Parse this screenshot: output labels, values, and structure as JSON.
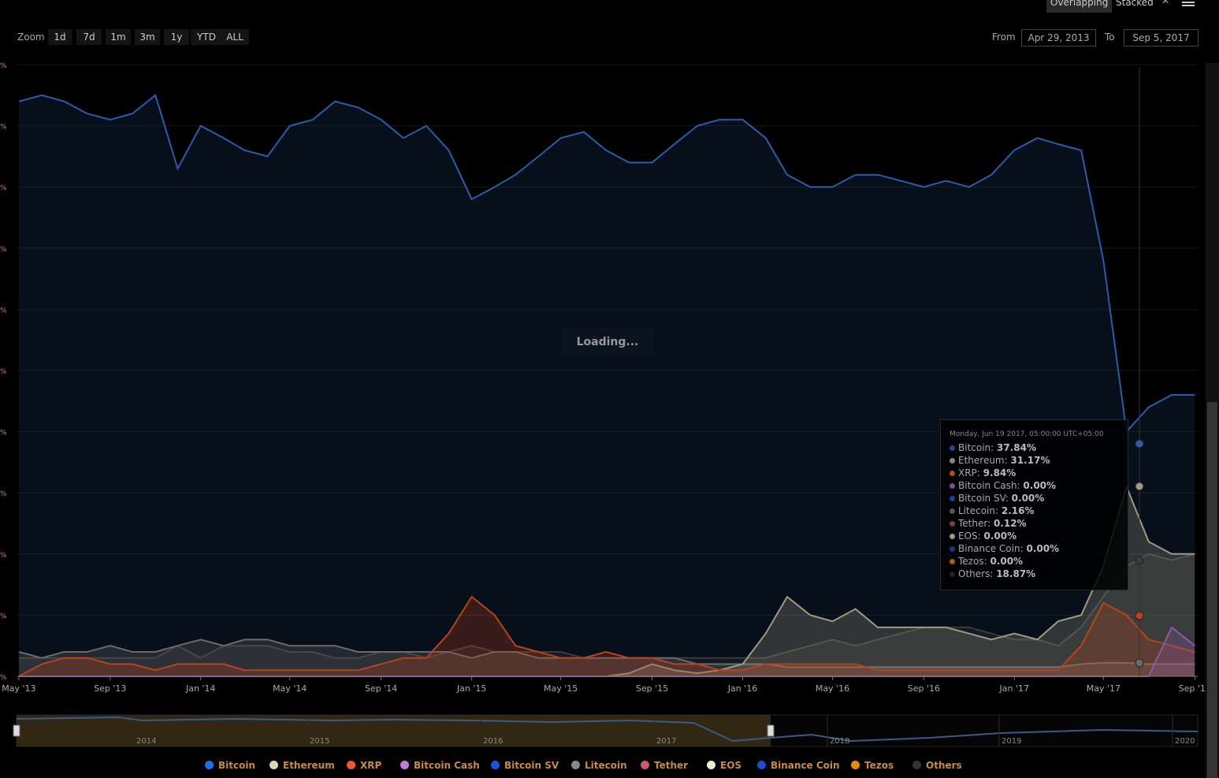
{
  "toolbar": {
    "zoom_label": "Zoom",
    "zoom_buttons": [
      "1d",
      "7d",
      "1m",
      "3m",
      "1y",
      "YTD",
      "ALL"
    ],
    "from_label": "From",
    "from_value": "Apr 29, 2013",
    "to_label": "To",
    "to_value": "Sep 5, 2017",
    "mode_overlapping": "Overlapping",
    "mode_stacked": "Stacked"
  },
  "loading_text": "Loading...",
  "tooltip": {
    "date": "Monday, Jun 19 2017, 05:00:00 UTC+05:00",
    "rows": [
      {
        "name": "Bitcoin:",
        "value": "37.84%",
        "color": "#1d4a8f"
      },
      {
        "name": "Ethereum:",
        "value": "31.17%",
        "color": "#8c8a70"
      },
      {
        "name": "XRP:",
        "value": "9.84%",
        "color": "#b34a1e"
      },
      {
        "name": "Bitcoin Cash:",
        "value": "0.00%",
        "color": "#7a4f8f"
      },
      {
        "name": "Bitcoin SV:",
        "value": "0.00%",
        "color": "#1c3c9c"
      },
      {
        "name": "Litecoin:",
        "value": "2.16%",
        "color": "#555555"
      },
      {
        "name": "Tether:",
        "value": "0.12%",
        "color": "#7f3b45"
      },
      {
        "name": "EOS:",
        "value": "0.00%",
        "color": "#9a9a85"
      },
      {
        "name": "Binance Coin:",
        "value": "0.00%",
        "color": "#1a3580"
      },
      {
        "name": "Tezos:",
        "value": "0.00%",
        "color": "#a35d10"
      },
      {
        "name": "Others:",
        "value": "18.87%",
        "color": "#222222"
      }
    ]
  },
  "legend": [
    {
      "name": "Bitcoin",
      "color": "#1f6fe5",
      "icon": "circle-icon"
    },
    {
      "name": "Ethereum",
      "color": "#d8d6b8",
      "icon": "circle-icon"
    },
    {
      "name": "XRP",
      "color": "#f0592a",
      "icon": "circle-icon"
    },
    {
      "name": "Bitcoin Cash",
      "color": "#c07ad8",
      "icon": "circle-icon"
    },
    {
      "name": "Bitcoin SV",
      "color": "#1e50e8",
      "icon": "circle-icon"
    },
    {
      "name": "Litecoin",
      "color": "#888888",
      "icon": "circle-icon"
    },
    {
      "name": "Tether",
      "color": "#c95a6c",
      "icon": "circle-icon"
    },
    {
      "name": "EOS",
      "color": "#f0ecc8",
      "icon": "circle-icon"
    },
    {
      "name": "Binance Coin",
      "color": "#1e4ad8",
      "icon": "circle-icon"
    },
    {
      "name": "Tezos",
      "color": "#e08a10",
      "icon": "circle-icon"
    },
    {
      "name": "Others",
      "color": "#333333",
      "icon": "circle-icon"
    }
  ],
  "navigator": {
    "year_labels": [
      "2014",
      "2015",
      "2016",
      "2017",
      "2018",
      "2019",
      "2020"
    ]
  },
  "chart_data": {
    "type": "area",
    "title": "",
    "xlabel": "",
    "ylabel": "",
    "x_tick_labels": [
      "May '13",
      "Sep '13",
      "Jan '14",
      "May '14",
      "Sep '14",
      "Jan '15",
      "May '15",
      "Sep '15",
      "Jan '16",
      "May '16",
      "Sep '16",
      "Jan '17",
      "May '17",
      "Sep '17"
    ],
    "y_tick_labels": [
      "%",
      "%",
      "%",
      "%",
      "%",
      "%",
      "%",
      "%",
      "%",
      "%"
    ],
    "ylim": [
      0,
      100
    ],
    "grid": true,
    "x": [
      "2013-05-01",
      "2013-06-01",
      "2013-07-01",
      "2013-08-01",
      "2013-09-01",
      "2013-10-01",
      "2013-11-01",
      "2013-12-01",
      "2014-01-01",
      "2014-02-01",
      "2014-03-01",
      "2014-04-01",
      "2014-05-01",
      "2014-06-01",
      "2014-07-01",
      "2014-08-01",
      "2014-09-01",
      "2014-10-01",
      "2014-11-01",
      "2014-12-01",
      "2015-01-01",
      "2015-02-01",
      "2015-03-01",
      "2015-04-01",
      "2015-05-01",
      "2015-06-01",
      "2015-07-01",
      "2015-08-01",
      "2015-09-01",
      "2015-10-01",
      "2015-11-01",
      "2015-12-01",
      "2016-01-01",
      "2016-02-01",
      "2016-03-01",
      "2016-04-01",
      "2016-05-01",
      "2016-06-01",
      "2016-07-01",
      "2016-08-01",
      "2016-09-01",
      "2016-10-01",
      "2016-11-01",
      "2016-12-01",
      "2017-01-01",
      "2017-02-01",
      "2017-03-01",
      "2017-04-01",
      "2017-05-01",
      "2017-06-01",
      "2017-07-01",
      "2017-08-01",
      "2017-09-01"
    ],
    "series": [
      {
        "name": "Bitcoin",
        "color": "#2b5cab",
        "values": [
          94,
          95,
          94,
          92,
          91,
          92,
          95,
          83,
          90,
          88,
          86,
          85,
          90,
          91,
          94,
          93,
          91,
          88,
          90,
          86,
          78,
          80,
          82,
          85,
          88,
          89,
          86,
          84,
          84,
          87,
          90,
          91,
          91,
          88,
          82,
          80,
          80,
          82,
          82,
          81,
          80,
          81,
          80,
          82,
          86,
          88,
          87,
          86,
          68,
          40,
          44,
          46,
          46
        ]
      },
      {
        "name": "Ethereum",
        "color": "#9d9b80",
        "values": [
          0,
          0,
          0,
          0,
          0,
          0,
          0,
          0,
          0,
          0,
          0,
          0,
          0,
          0,
          0,
          0,
          0,
          0,
          0,
          0,
          0,
          0,
          0,
          0,
          0,
          0,
          0,
          0.5,
          2,
          1,
          0.5,
          1,
          2,
          7,
          13,
          10,
          9,
          11,
          8,
          8,
          8,
          8,
          7,
          6,
          7,
          6,
          9,
          10,
          18,
          31,
          22,
          20,
          20
        ]
      },
      {
        "name": "XRP",
        "color": "#b8421a",
        "values": [
          0,
          2,
          3,
          3,
          2,
          2,
          1,
          2,
          2,
          2,
          1,
          1,
          1,
          1,
          1,
          1,
          2,
          3,
          3,
          7,
          13,
          10,
          5,
          4,
          3,
          3,
          4,
          3,
          3,
          2,
          2,
          1,
          1,
          2,
          2,
          2,
          2,
          2,
          1,
          1,
          1,
          1,
          1,
          1,
          1,
          1,
          1,
          5,
          12,
          10,
          6,
          5,
          4
        ]
      },
      {
        "name": "Litecoin",
        "color": "#6a6a6a",
        "values": [
          4,
          3,
          4,
          4,
          5,
          4,
          4,
          5,
          6,
          5,
          6,
          6,
          5,
          5,
          5,
          4,
          4,
          4,
          4,
          4,
          3,
          4,
          4,
          3,
          3,
          3,
          3,
          3,
          3,
          3,
          2,
          2,
          2,
          2,
          1.5,
          1.5,
          1.5,
          1.5,
          1.5,
          1.5,
          1.5,
          1.5,
          1.5,
          1.5,
          1.5,
          1.5,
          1.5,
          2,
          2.2,
          2.2,
          2,
          2,
          2
        ]
      },
      {
        "name": "Others",
        "color": "#3a3a3a",
        "values": [
          3,
          3,
          3,
          3,
          3,
          3,
          3,
          5,
          3,
          5,
          5,
          5,
          4,
          4,
          3,
          3,
          4,
          4,
          3,
          4,
          5,
          4,
          4,
          4,
          4,
          3,
          3,
          3,
          3,
          3,
          3,
          3,
          3,
          3,
          4,
          5,
          6,
          5,
          6,
          7,
          8,
          8,
          8,
          7,
          6,
          6,
          5,
          8,
          13,
          18,
          20,
          19,
          20
        ]
      },
      {
        "name": "Bitcoin Cash",
        "color": "#8a5aa8",
        "values": [
          0,
          0,
          0,
          0,
          0,
          0,
          0,
          0,
          0,
          0,
          0,
          0,
          0,
          0,
          0,
          0,
          0,
          0,
          0,
          0,
          0,
          0,
          0,
          0,
          0,
          0,
          0,
          0,
          0,
          0,
          0,
          0,
          0,
          0,
          0,
          0,
          0,
          0,
          0,
          0,
          0,
          0,
          0,
          0,
          0,
          0,
          0,
          0,
          0,
          0,
          0,
          8,
          5
        ]
      }
    ]
  }
}
